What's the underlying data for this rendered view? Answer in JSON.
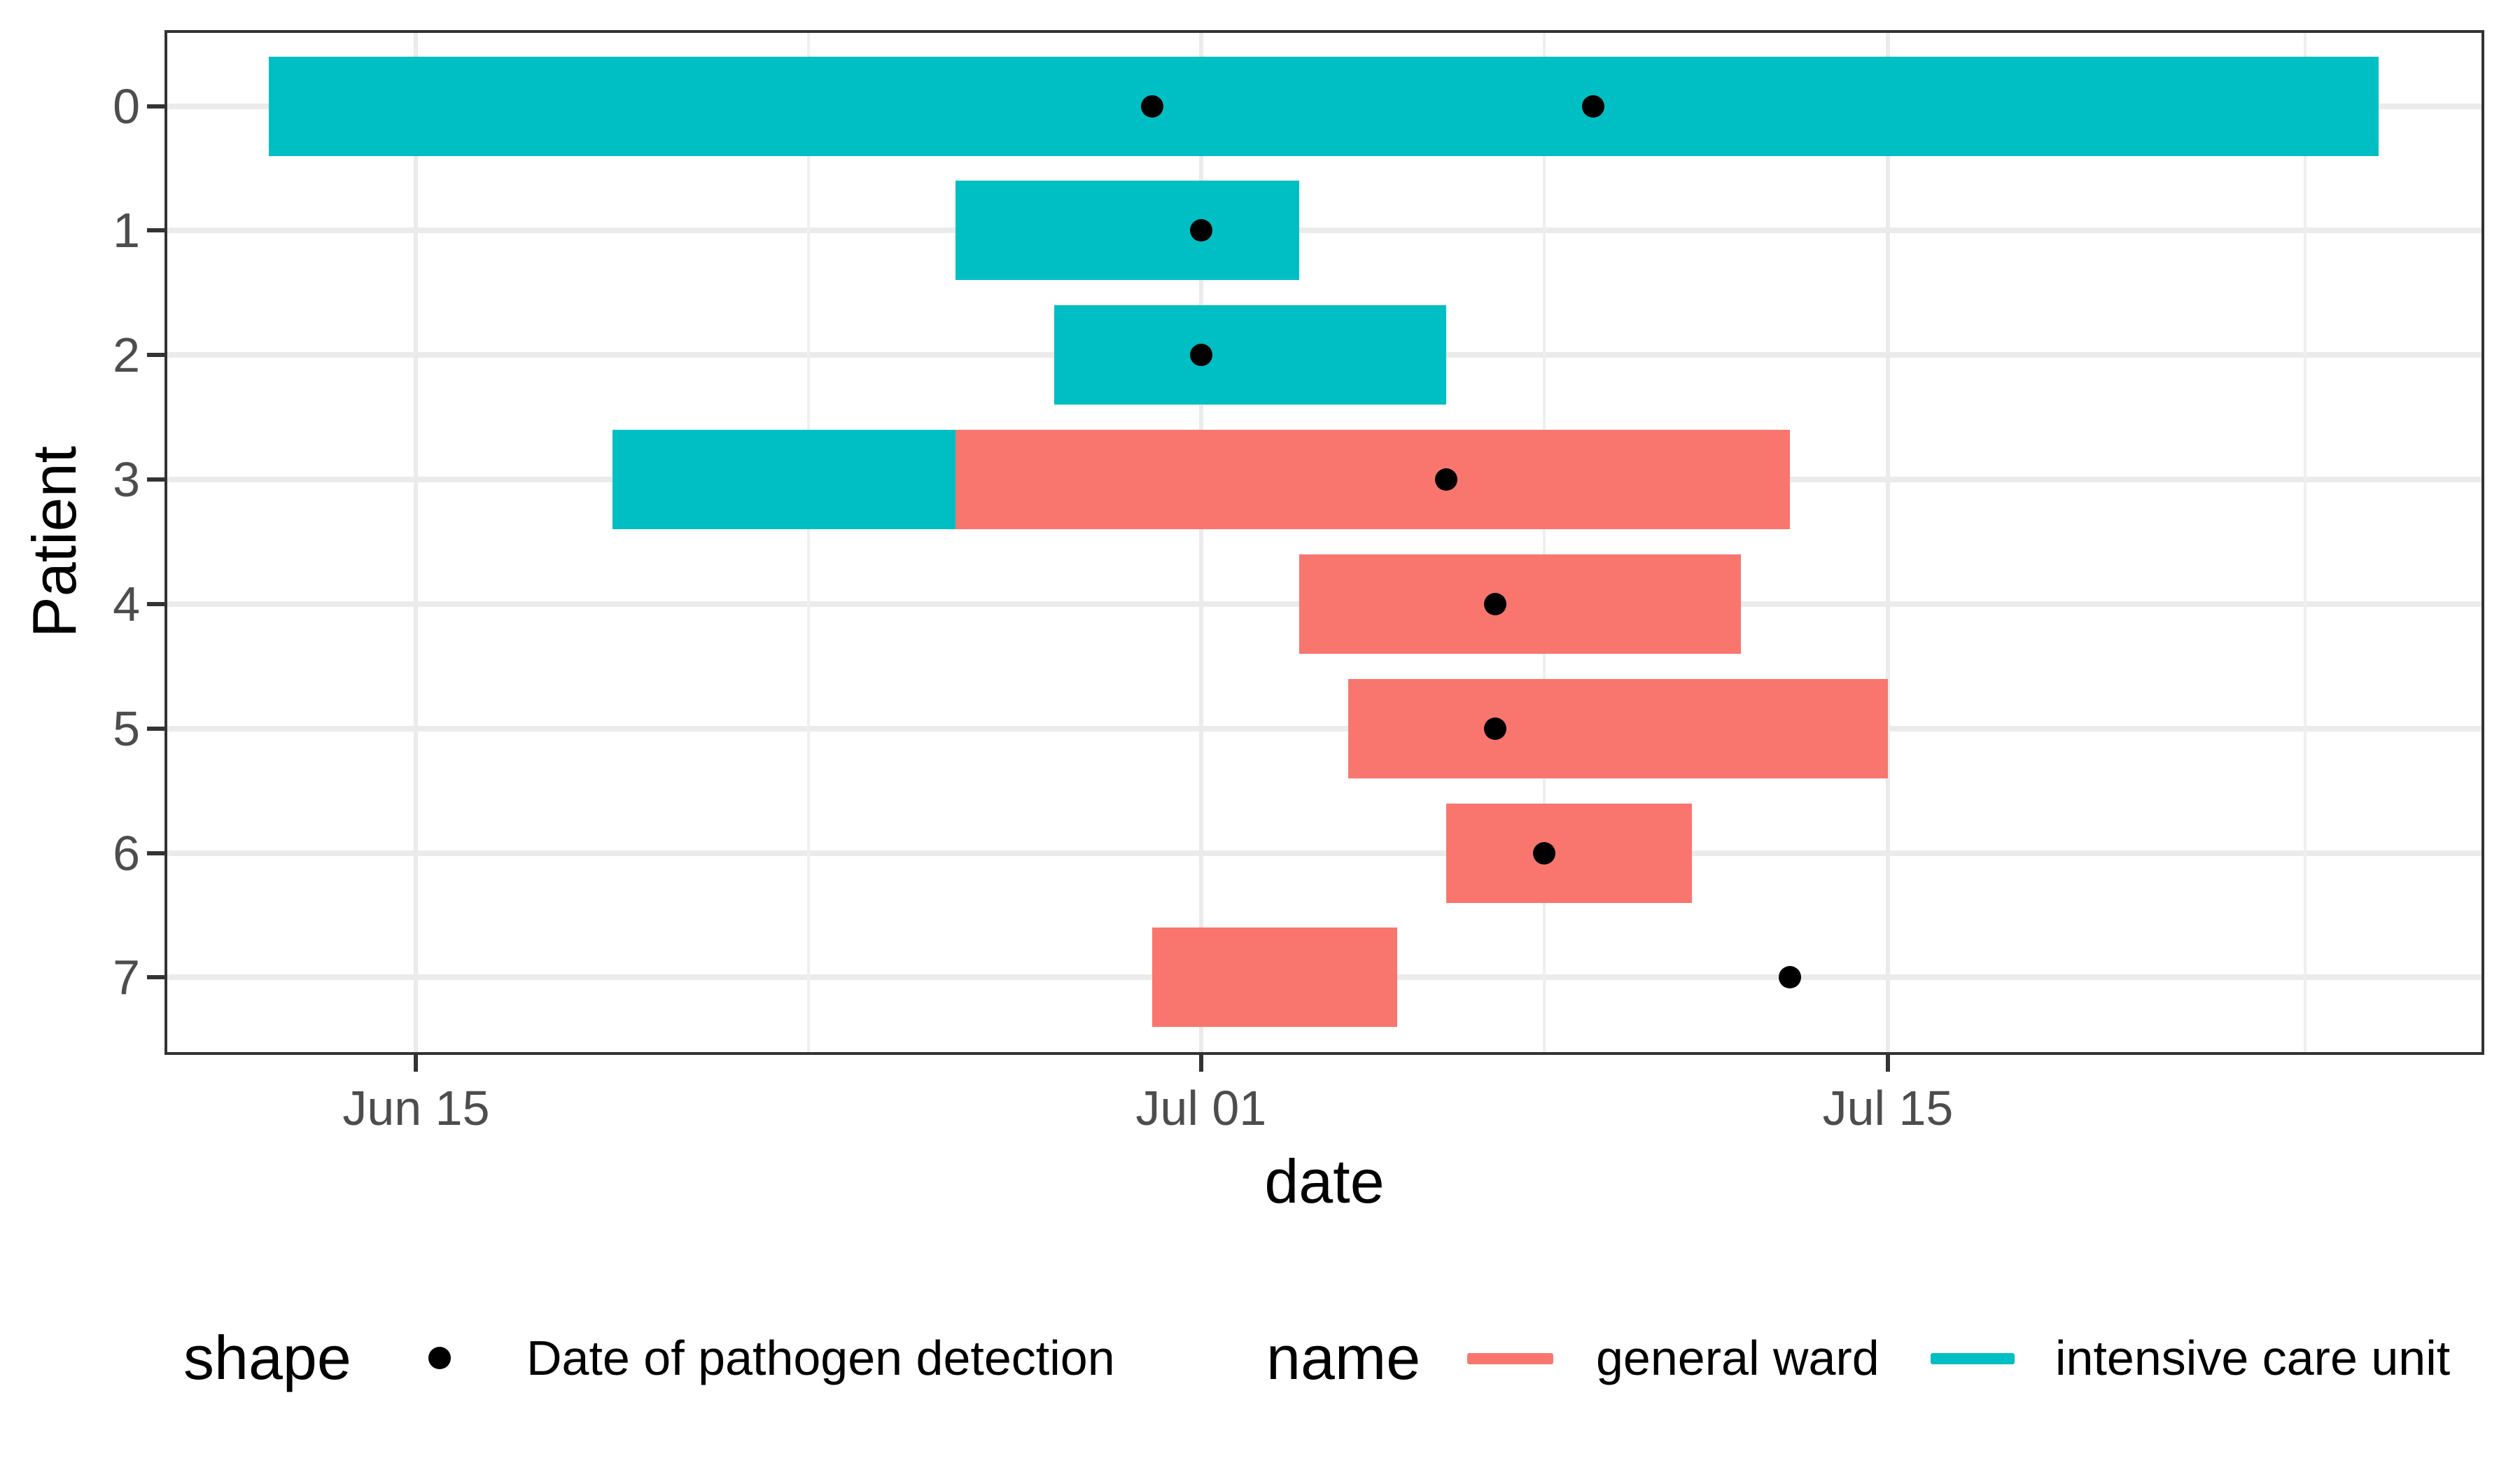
{
  "chart_data": {
    "type": "bar",
    "subtype": "gantt-timeline",
    "xlabel": "date",
    "ylabel": "Patient",
    "x_domain_days": [
      9.9,
      57.1
    ],
    "x_ticks": [
      {
        "label": "Jun 15",
        "date": "Jun 15"
      },
      {
        "label": "Jul 01",
        "date": "Jul 01"
      },
      {
        "label": "Jul 15",
        "date": "Jul 15"
      }
    ],
    "x_minor_days": [
      23,
      38,
      53.5
    ],
    "grid": true,
    "rows": [
      {
        "label": "0",
        "stays": [
          {
            "unit": "intensive care unit",
            "start": "Jun 12",
            "end": "Jul 25"
          }
        ],
        "detections": [
          "Jun 30",
          "Jul 09"
        ]
      },
      {
        "label": "1",
        "stays": [
          {
            "unit": "intensive care unit",
            "start": "Jun 26",
            "end": "Jul 03"
          }
        ],
        "detections": [
          "Jul 01"
        ]
      },
      {
        "label": "2",
        "stays": [
          {
            "unit": "intensive care unit",
            "start": "Jun 28",
            "end": "Jul 06"
          }
        ],
        "detections": [
          "Jul 01"
        ]
      },
      {
        "label": "3",
        "stays": [
          {
            "unit": "intensive care unit",
            "start": "Jun 19",
            "end": "Jun 26"
          },
          {
            "unit": "general ward",
            "start": "Jun 26",
            "end": "Jul 13"
          }
        ],
        "detections": [
          "Jul 06"
        ]
      },
      {
        "label": "4",
        "stays": [
          {
            "unit": "general ward",
            "start": "Jul 03",
            "end": "Jul 12"
          }
        ],
        "detections": [
          "Jul 07"
        ]
      },
      {
        "label": "5",
        "stays": [
          {
            "unit": "general ward",
            "start": "Jul 04",
            "end": "Jul 15"
          }
        ],
        "detections": [
          "Jul 07"
        ]
      },
      {
        "label": "6",
        "stays": [
          {
            "unit": "general ward",
            "start": "Jul 06",
            "end": "Jul 11"
          }
        ],
        "detections": [
          "Jul 08"
        ]
      },
      {
        "label": "7",
        "stays": [
          {
            "unit": "general ward",
            "start": "Jun 30",
            "end": "Jul 05"
          }
        ],
        "detections": [
          "Jul 13"
        ]
      }
    ],
    "colors": {
      "general ward": "#F8766D",
      "intensive care unit": "#00BFC4",
      "detection_dot": "#000000",
      "gridline": "#EBEBEB",
      "axis_text": "#4D4D4D",
      "panel_border": "#333333"
    },
    "legend_position": "bottom"
  },
  "legend": {
    "shape": {
      "title": "shape",
      "item_label": "Date of pathogen detection",
      "marker_color": "#000000"
    },
    "name": {
      "title": "name",
      "items": [
        {
          "label": "general ward",
          "color": "#F8766D"
        },
        {
          "label": "intensive care unit",
          "color": "#00BFC4"
        }
      ]
    }
  }
}
